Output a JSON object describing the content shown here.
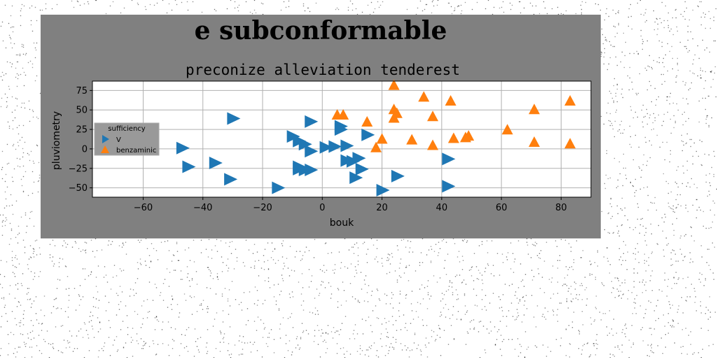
{
  "figure": {
    "suptitle": "e subconformable",
    "background": "#808080"
  },
  "chart_data": {
    "type": "scatter",
    "title": "preconize alleviation tenderest",
    "xlabel": "bouk",
    "ylabel": "pluviometry",
    "xlim": [
      -77,
      90
    ],
    "ylim": [
      -62,
      87
    ],
    "xticks": [
      -60,
      -40,
      -20,
      0,
      20,
      40,
      60,
      80
    ],
    "yticks": [
      -50,
      -25,
      0,
      25,
      50,
      75
    ],
    "grid": true,
    "legend": {
      "title": "sufficiency",
      "placement": "center-left",
      "entries": [
        "V",
        "benzaminic"
      ]
    },
    "series": [
      {
        "name": "V",
        "marker": "triangle-right",
        "color": "#1f77b4",
        "points": [
          [
            -30,
            39
          ],
          [
            -47,
            1
          ],
          [
            -45,
            -23
          ],
          [
            -36,
            -18
          ],
          [
            -31,
            -39
          ],
          [
            -15,
            -50
          ],
          [
            -10,
            16
          ],
          [
            -8,
            10
          ],
          [
            -6,
            6
          ],
          [
            -4,
            35
          ],
          [
            -4,
            -3
          ],
          [
            -8,
            -26
          ],
          [
            -8,
            -23
          ],
          [
            -6,
            -27
          ],
          [
            -4,
            -27
          ],
          [
            1,
            2
          ],
          [
            4,
            3
          ],
          [
            6,
            29
          ],
          [
            6,
            25
          ],
          [
            8,
            4
          ],
          [
            8,
            -15
          ],
          [
            10,
            -16
          ],
          [
            12,
            -12
          ],
          [
            13,
            -26
          ],
          [
            11,
            -37
          ],
          [
            15,
            18
          ],
          [
            20,
            -53
          ],
          [
            25,
            -35
          ],
          [
            42,
            -13
          ],
          [
            42,
            -48
          ]
        ]
      },
      {
        "name": "benzaminic",
        "marker": "triangle-up",
        "color": "#ff7f0e",
        "points": [
          [
            24,
            81
          ],
          [
            34,
            66
          ],
          [
            43,
            61
          ],
          [
            24,
            50
          ],
          [
            25,
            45
          ],
          [
            24,
            39
          ],
          [
            37,
            41
          ],
          [
            5,
            43
          ],
          [
            7,
            43
          ],
          [
            15,
            34
          ],
          [
            20,
            12
          ],
          [
            18,
            1
          ],
          [
            30,
            11
          ],
          [
            37,
            4
          ],
          [
            44,
            13
          ],
          [
            48,
            14
          ],
          [
            49,
            16
          ],
          [
            62,
            24
          ],
          [
            71,
            50
          ],
          [
            71,
            8
          ],
          [
            83,
            61
          ],
          [
            83,
            6
          ]
        ]
      }
    ]
  }
}
